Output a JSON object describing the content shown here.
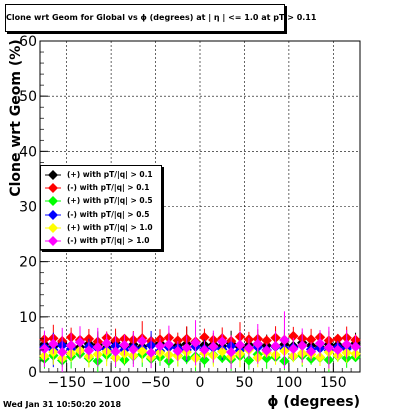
{
  "title": "Clone wrt Geom for Global vs ϕ (degrees) at | η | <= 1.0 at pT > 0.11",
  "timestamp": "Wed Jan 31 10:50:20 2018",
  "chart_data": {
    "type": "scatter",
    "xlabel": "ϕ (degrees)",
    "ylabel": "Clone wrt Geom (%)",
    "xlim": [
      -180,
      180
    ],
    "ylim": [
      0,
      60
    ],
    "xticks": [
      -150,
      -100,
      -50,
      0,
      50,
      100,
      150
    ],
    "xtick_labels": [
      "−150",
      "−100",
      "−50",
      "0",
      "50",
      "100",
      "150"
    ],
    "yticks": [
      0,
      10,
      20,
      30,
      40,
      50,
      60
    ],
    "grid": true,
    "legend_position": "left-middle",
    "series": [
      {
        "name": "(+) with pT/|q| > 0.1",
        "color": "#000000",
        "y": [
          5.0,
          4.6,
          5.2,
          4.8,
          4.5,
          5.1,
          4.9,
          4.4,
          5.3,
          4.7,
          5.0,
          4.6,
          4.9,
          5.2,
          4.5,
          4.8,
          5.1,
          4.6,
          4.9,
          5.0,
          4.7,
          5.2,
          4.5,
          4.9,
          5.1,
          4.8,
          4.6,
          5.0,
          4.7,
          5.3,
          4.8,
          4.5,
          5.0,
          4.9,
          4.6,
          5.2
        ]
      },
      {
        "name": "(-) with pT/|q| > 0.1",
        "color": "#ff0000",
        "y": [
          5.9,
          6.1,
          5.6,
          6.3,
          5.8,
          6.0,
          5.5,
          6.2,
          5.7,
          6.0,
          5.8,
          6.1,
          5.6,
          5.9,
          6.2,
          5.7,
          6.0,
          5.5,
          6.3,
          5.8,
          6.1,
          5.6,
          6.4,
          5.9,
          6.0,
          5.7,
          6.2,
          5.8,
          6.5,
          6.1,
          5.9,
          6.3,
          5.7,
          6.0,
          6.2,
          5.8
        ]
      },
      {
        "name": "(+) with pT/|q| > 0.5",
        "color": "#00ff00",
        "y": [
          2.4,
          3.0,
          2.1,
          2.8,
          3.3,
          2.5,
          2.0,
          3.1,
          2.6,
          2.2,
          2.9,
          3.2,
          2.4,
          2.7,
          2.0,
          3.0,
          2.5,
          2.8,
          2.2,
          3.1,
          2.6,
          2.3,
          2.9,
          2.1,
          3.2,
          2.5,
          2.7,
          2.0,
          2.8,
          3.0,
          2.4,
          2.6,
          2.2,
          2.9,
          2.5,
          2.7
        ]
      },
      {
        "name": "(-) with pT/|q| > 0.5",
        "color": "#0000ff",
        "y": [
          4.5,
          4.0,
          4.8,
          4.2,
          3.9,
          4.6,
          4.3,
          4.1,
          4.7,
          4.0,
          4.4,
          4.2,
          4.8,
          3.8,
          4.5,
          4.3,
          4.0,
          4.6,
          4.2,
          4.4,
          4.1,
          4.7,
          3.9,
          4.3,
          4.5,
          4.0,
          4.6,
          4.2,
          4.4,
          4.8,
          4.1,
          4.3,
          3.9,
          4.5,
          4.2,
          4.6
        ]
      },
      {
        "name": "(+) with pT/|q| > 1.0",
        "color": "#ffff00",
        "y": [
          2.9,
          3.6,
          2.5,
          3.4,
          3.9,
          2.8,
          3.2,
          3.7,
          2.6,
          3.3,
          3.0,
          3.8,
          2.7,
          3.5,
          3.1,
          2.9,
          3.6,
          2.5,
          3.4,
          3.0,
          3.7,
          2.8,
          3.3,
          4.0,
          2.6,
          3.5,
          3.1,
          3.8,
          2.9,
          3.4,
          3.2,
          2.7,
          3.6,
          3.0,
          3.5,
          3.3
        ]
      },
      {
        "name": "(-) with pT/|q| > 1.0",
        "color": "#ff00ff",
        "y": [
          4.2,
          5.1,
          3.6,
          4.8,
          5.4,
          3.9,
          4.5,
          5.2,
          3.7,
          4.9,
          4.1,
          5.6,
          3.5,
          4.7,
          5.0,
          3.8,
          4.4,
          5.3,
          4.0,
          4.6,
          5.5,
          3.6,
          4.9,
          4.3,
          5.1,
          3.9,
          4.7,
          5.8,
          4.2,
          4.8,
          3.7,
          5.2,
          4.4,
          4.0,
          5.0,
          4.6
        ]
      }
    ],
    "error_bars": [
      1.2,
      2.8,
      1.5,
      3.4,
      1.8,
      2.2,
      4.1,
      1.6,
      2.9,
      1.4,
      3.0,
      2.5,
      1.9,
      3.6,
      1.3,
      2.7,
      5.2,
      2.0,
      3.1,
      1.7,
      2.4,
      3.8,
      1.5,
      2.6,
      2.1,
      3.3,
      1.8,
      4.4,
      2.3,
      2.9,
      1.6,
      3.5,
      2.0,
      2.8,
      1.9,
      3.2
    ]
  }
}
